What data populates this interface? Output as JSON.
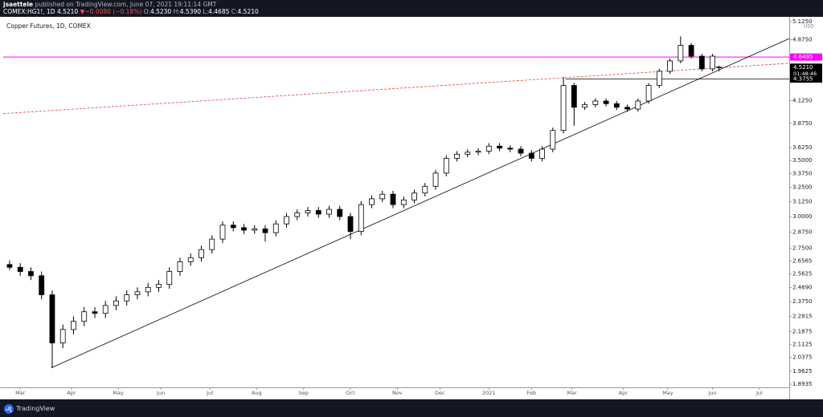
{
  "header": {
    "author": "jsaettele",
    "published": "published on TradingView.com, June 07, 2021 19:11:14 GMT",
    "symbol": "COMEX:HG1!, 1D",
    "last": "4.5210",
    "arrow": "▼",
    "change": "−0.0080 (−0.18%)",
    "ohlc": [
      "O:",
      "4.5230",
      "H:",
      "4.5390",
      "L:",
      "4.4685",
      "C:",
      "4.5210"
    ]
  },
  "footer": {
    "brand": "TradingView"
  },
  "chart_data": {
    "type": "candlestick",
    "title": "Copper Futures, 1D, COMEX",
    "currency": "USD",
    "log_scale": true,
    "grid": false,
    "x": [
      -5,
      0,
      5,
      10,
      15,
      20,
      25,
      30,
      35,
      40,
      45,
      50,
      55,
      60,
      65,
      70,
      75,
      80,
      85,
      90,
      95,
      100,
      105,
      110,
      115,
      120,
      125,
      130,
      135,
      140,
      145,
      150,
      155,
      160,
      165,
      170,
      175,
      180,
      185,
      190,
      195,
      200,
      205,
      210,
      215,
      220,
      225,
      230,
      235,
      240,
      245,
      250,
      255,
      260,
      265,
      270,
      275,
      280,
      285,
      290,
      295,
      300,
      305,
      310,
      315,
      320,
      325,
      328
    ],
    "open": [
      2.63,
      2.61,
      2.58,
      2.55,
      2.42,
      2.12,
      2.2,
      2.25,
      2.31,
      2.3,
      2.35,
      2.38,
      2.42,
      2.44,
      2.47,
      2.49,
      2.58,
      2.65,
      2.68,
      2.74,
      2.82,
      2.93,
      2.91,
      2.89,
      2.9,
      2.87,
      2.94,
      3.0,
      3.03,
      3.05,
      3.02,
      3.06,
      3.0,
      2.88,
      3.1,
      3.15,
      3.19,
      3.1,
      3.14,
      3.2,
      3.26,
      3.38,
      3.52,
      3.56,
      3.58,
      3.59,
      3.64,
      3.62,
      3.61,
      3.57,
      3.52,
      3.61,
      3.8,
      4.3,
      4.05,
      4.08,
      4.12,
      4.09,
      4.05,
      4.03,
      4.12,
      4.3,
      4.47,
      4.6,
      4.8,
      4.66,
      4.5,
      4.523
    ],
    "high": [
      2.66,
      2.64,
      2.61,
      2.58,
      2.45,
      2.23,
      2.28,
      2.34,
      2.34,
      2.38,
      2.41,
      2.45,
      2.47,
      2.5,
      2.52,
      2.61,
      2.68,
      2.71,
      2.77,
      2.85,
      2.96,
      2.96,
      2.94,
      2.93,
      2.93,
      2.97,
      3.03,
      3.06,
      3.08,
      3.08,
      3.09,
      3.09,
      3.03,
      3.13,
      3.18,
      3.22,
      3.22,
      3.17,
      3.23,
      3.29,
      3.41,
      3.55,
      3.59,
      3.61,
      3.62,
      3.67,
      3.67,
      3.65,
      3.64,
      3.6,
      3.64,
      3.83,
      4.4,
      4.33,
      4.11,
      4.15,
      4.15,
      4.12,
      4.08,
      4.15,
      4.33,
      4.5,
      4.63,
      4.92,
      4.83,
      4.69,
      4.69,
      4.539
    ],
    "low": [
      2.59,
      2.55,
      2.52,
      2.39,
      1.98,
      2.09,
      2.17,
      2.22,
      2.27,
      2.27,
      2.32,
      2.35,
      2.39,
      2.41,
      2.44,
      2.46,
      2.55,
      2.62,
      2.65,
      2.71,
      2.79,
      2.88,
      2.86,
      2.86,
      2.8,
      2.84,
      2.91,
      2.97,
      3.0,
      2.99,
      2.99,
      2.97,
      2.82,
      2.85,
      3.07,
      3.12,
      3.07,
      3.07,
      3.11,
      3.17,
      3.23,
      3.35,
      3.49,
      3.53,
      3.55,
      3.56,
      3.59,
      3.58,
      3.54,
      3.49,
      3.49,
      3.58,
      3.77,
      3.85,
      4.02,
      4.05,
      4.06,
      4.02,
      4.0,
      4.0,
      4.09,
      4.27,
      4.44,
      4.57,
      4.63,
      4.47,
      4.47,
      4.4685
    ],
    "close": [
      2.61,
      2.58,
      2.55,
      2.42,
      2.12,
      2.2,
      2.25,
      2.31,
      2.3,
      2.35,
      2.38,
      2.42,
      2.44,
      2.47,
      2.49,
      2.58,
      2.65,
      2.68,
      2.74,
      2.82,
      2.93,
      2.91,
      2.89,
      2.9,
      2.87,
      2.94,
      3.0,
      3.03,
      3.05,
      3.02,
      3.06,
      3.0,
      2.88,
      3.1,
      3.15,
      3.19,
      3.1,
      3.14,
      3.2,
      3.26,
      3.38,
      3.52,
      3.56,
      3.58,
      3.59,
      3.64,
      3.62,
      3.61,
      3.57,
      3.52,
      3.61,
      3.8,
      4.3,
      4.05,
      4.08,
      4.12,
      4.09,
      4.05,
      4.03,
      4.12,
      4.3,
      4.47,
      4.6,
      4.8,
      4.66,
      4.5,
      4.66,
      4.521
    ],
    "up_color": "#ffffff",
    "down_color": "#000000",
    "edge_color": "#000000",
    "xlim": [
      -8,
      361
    ],
    "xticks": [
      {
        "value": 0,
        "label": "Mar"
      },
      {
        "value": 24,
        "label": "Apr"
      },
      {
        "value": 46,
        "label": "May"
      },
      {
        "value": 66,
        "label": "Jun"
      },
      {
        "value": 89,
        "label": "Jul"
      },
      {
        "value": 111,
        "label": "Aug"
      },
      {
        "value": 133,
        "label": "Sep"
      },
      {
        "value": 155,
        "label": "Oct"
      },
      {
        "value": 177,
        "label": "Nov"
      },
      {
        "value": 197,
        "label": "Dec"
      },
      {
        "value": 220,
        "label": "2021"
      },
      {
        "value": 240,
        "label": "Feb"
      },
      {
        "value": 259,
        "label": "Mar"
      },
      {
        "value": 283,
        "label": "Apr"
      },
      {
        "value": 304,
        "label": "May"
      },
      {
        "value": 325,
        "label": "Jun"
      },
      {
        "value": 347,
        "label": "Jul"
      }
    ],
    "ylim": [
      1.877,
      5.18
    ],
    "yticks": [
      {
        "value": 5.125,
        "label": "5.1250"
      },
      {
        "value": 4.875,
        "label": "4.8750"
      },
      {
        "value": 4.125,
        "label": "4.1250"
      },
      {
        "value": 3.875,
        "label": "3.8750"
      },
      {
        "value": 3.625,
        "label": "3.6250"
      },
      {
        "value": 3.5,
        "label": "3.5000"
      },
      {
        "value": 3.375,
        "label": "3.3750"
      },
      {
        "value": 3.25,
        "label": "3.2500"
      },
      {
        "value": 3.125,
        "label": "3.1250"
      },
      {
        "value": 3,
        "label": "3.0000"
      },
      {
        "value": 2.875,
        "label": "2.8750"
      },
      {
        "value": 2.75,
        "label": "2.7500"
      },
      {
        "value": 2.6565,
        "label": "2.6565"
      },
      {
        "value": 2.5625,
        "label": "2.5625"
      },
      {
        "value": 2.469,
        "label": "2.4690"
      },
      {
        "value": 2.375,
        "label": "2.3750"
      },
      {
        "value": 2.2815,
        "label": "2.2815"
      },
      {
        "value": 2.1875,
        "label": "2.1875"
      },
      {
        "value": 2.1125,
        "label": "2.1125"
      },
      {
        "value": 2.0375,
        "label": "2.0375"
      },
      {
        "value": 1.9625,
        "label": "1.9625"
      },
      {
        "value": 1.8935,
        "label": "1.8935"
      }
    ],
    "hlines": [
      {
        "value": 4.6495,
        "color": "#ff00ff"
      }
    ],
    "lines": [
      {
        "x": [
          256,
          361
        ],
        "y": [
          4.3755,
          4.3755
        ],
        "color": "#000000",
        "dashed": false
      },
      {
        "x": [
          14.5,
          361
        ],
        "y": [
          1.98,
          4.89
        ],
        "color": "#000000",
        "dashed": false
      },
      {
        "x": [
          -8,
          361
        ],
        "y": [
          3.98,
          4.57
        ],
        "color": "#e53935",
        "dashed": true
      }
    ],
    "price_labels": [
      {
        "value": 4.6495,
        "label": "4.6495",
        "color": "#ff00ff"
      },
      {
        "value": 4.521,
        "label": "4.5210",
        "color": "#000000",
        "countdown": "01:48:46"
      },
      {
        "value": 4.3755,
        "label": "4.3755",
        "color": "#000000"
      }
    ]
  }
}
